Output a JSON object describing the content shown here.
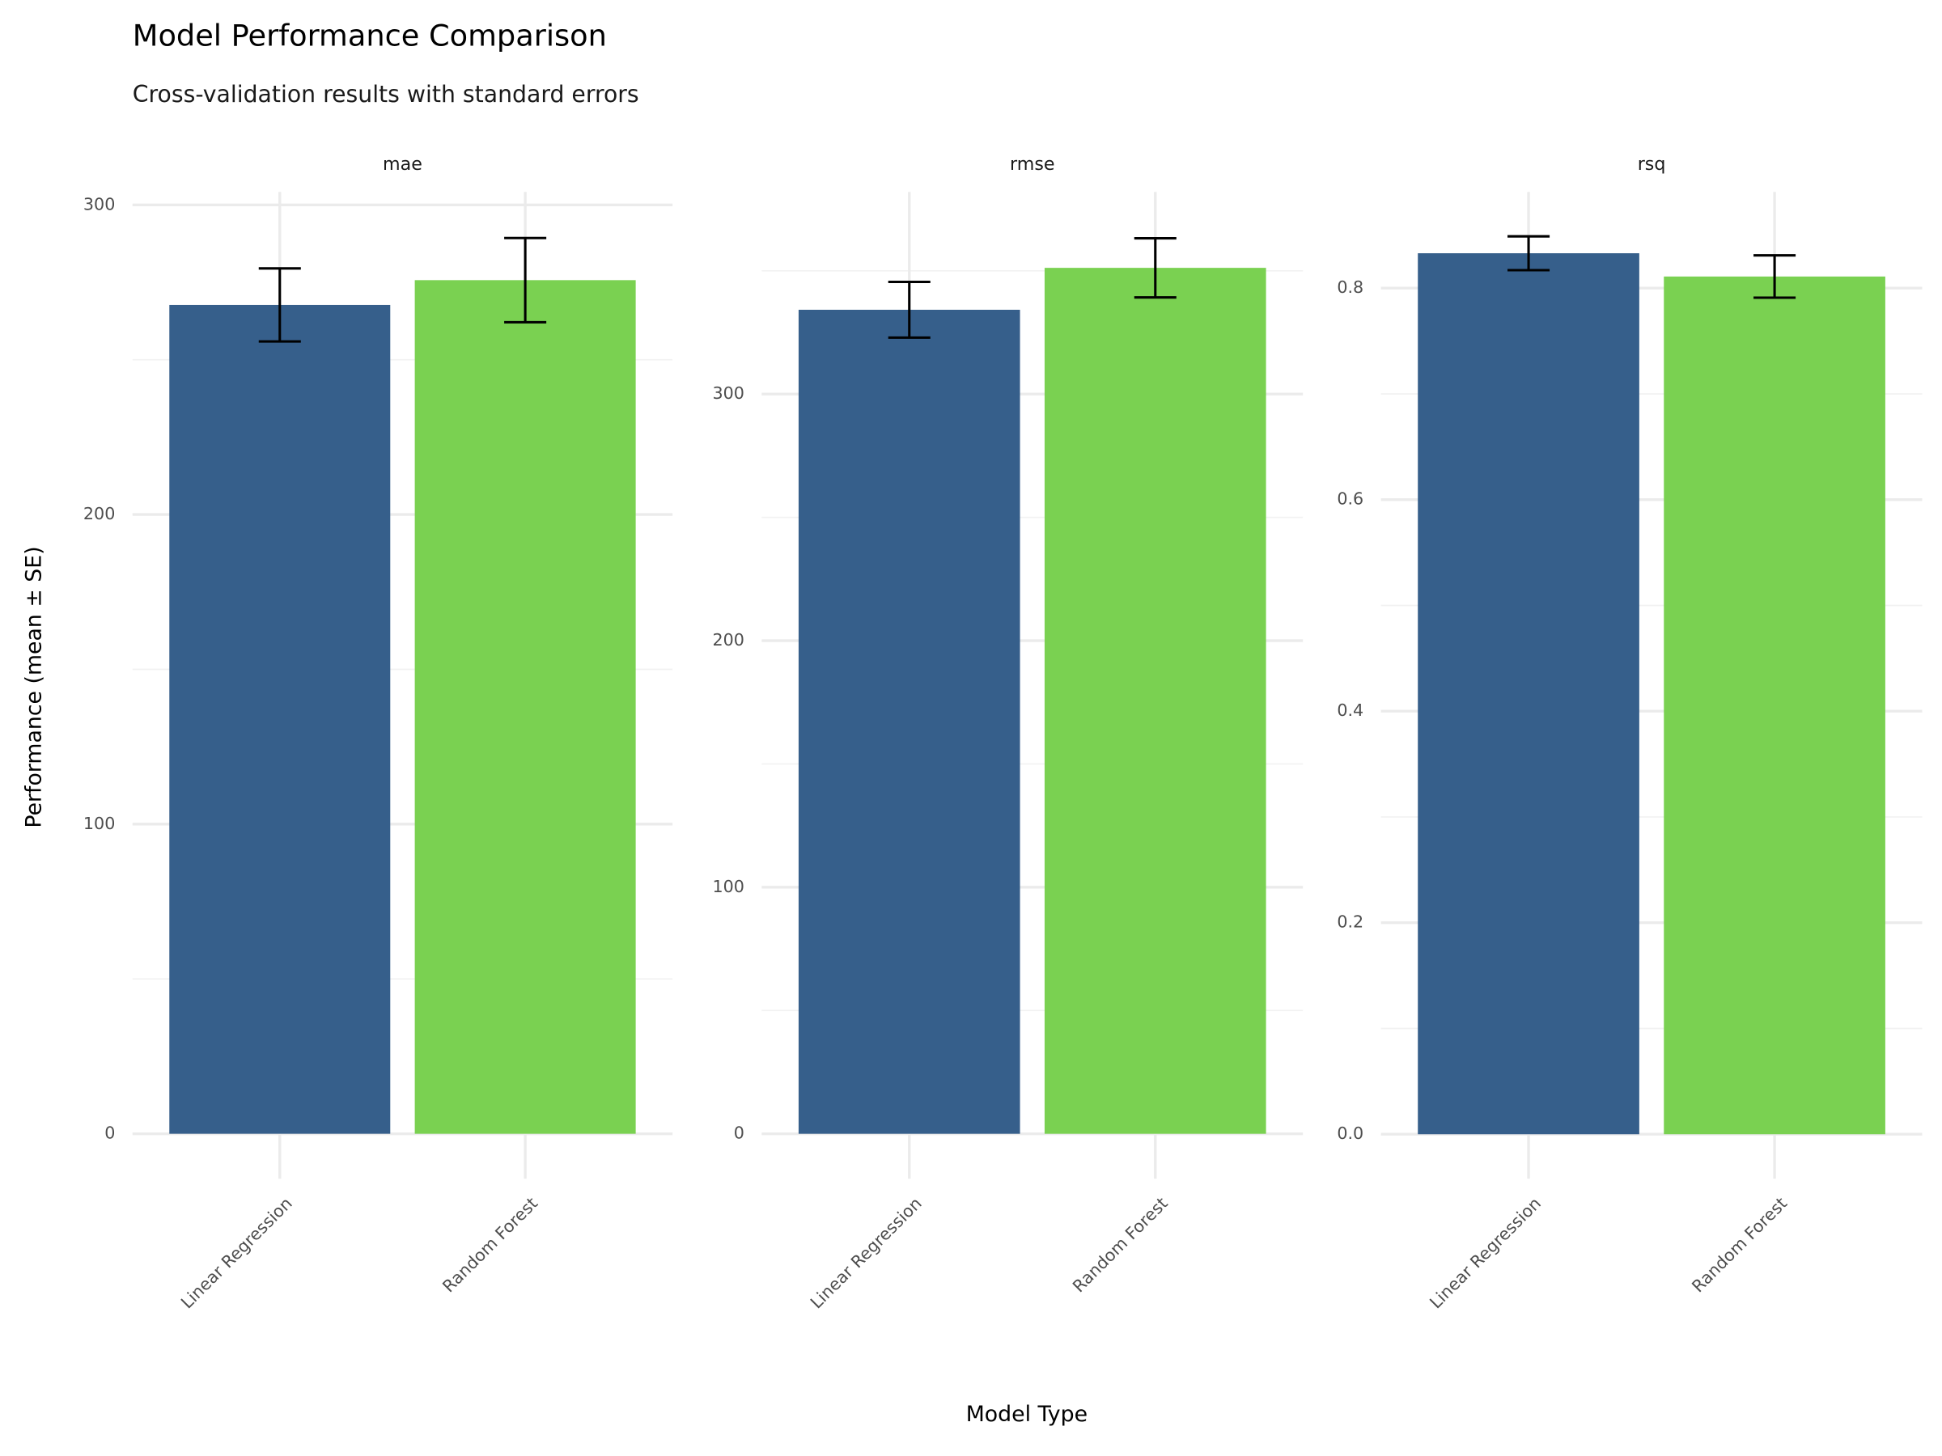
{
  "title": "Model Performance Comparison",
  "subtitle": "Cross-validation results with standard errors",
  "x_label": "Model Type",
  "y_label": "Performance (mean ± SE)",
  "chart_data": [
    {
      "type": "bar",
      "title": "mae",
      "categories": [
        "Linear Regression",
        "Random Forest"
      ],
      "values": [
        267.7,
        275.7
      ],
      "errors": [
        11.8,
        13.6
      ],
      "colors": [
        "#365f8b",
        "#7ad151"
      ],
      "ylim": [
        -14.5,
        304.2
      ],
      "yticks": [
        0,
        100,
        200,
        300
      ],
      "minor_yticks": [
        50,
        150,
        250
      ],
      "grid": true
    },
    {
      "type": "bar",
      "title": "rmse",
      "categories": [
        "Linear Regression",
        "Random Forest"
      ],
      "values": [
        334.2,
        351.2
      ],
      "errors": [
        11.3,
        12.0
      ],
      "colors": [
        "#365f8b",
        "#7ad151"
      ],
      "ylim": [
        -18.2,
        382
      ],
      "yticks": [
        0,
        100,
        200,
        300
      ],
      "minor_yticks": [
        50,
        150,
        250,
        350
      ],
      "grid": true
    },
    {
      "type": "bar",
      "title": "rsq",
      "categories": [
        "Linear Regression",
        "Random Forest"
      ],
      "values": [
        0.833,
        0.811
      ],
      "errors": [
        0.016,
        0.02
      ],
      "colors": [
        "#365f8b",
        "#7ad151"
      ],
      "ylim": [
        -0.042,
        0.891
      ],
      "yticks": [
        {
          "value": 0,
          "label": "0.0"
        },
        0.2,
        0.4,
        0.6,
        0.8
      ],
      "minor_yticks": [
        0.1,
        0.3,
        0.5,
        0.7
      ],
      "grid": true
    }
  ]
}
